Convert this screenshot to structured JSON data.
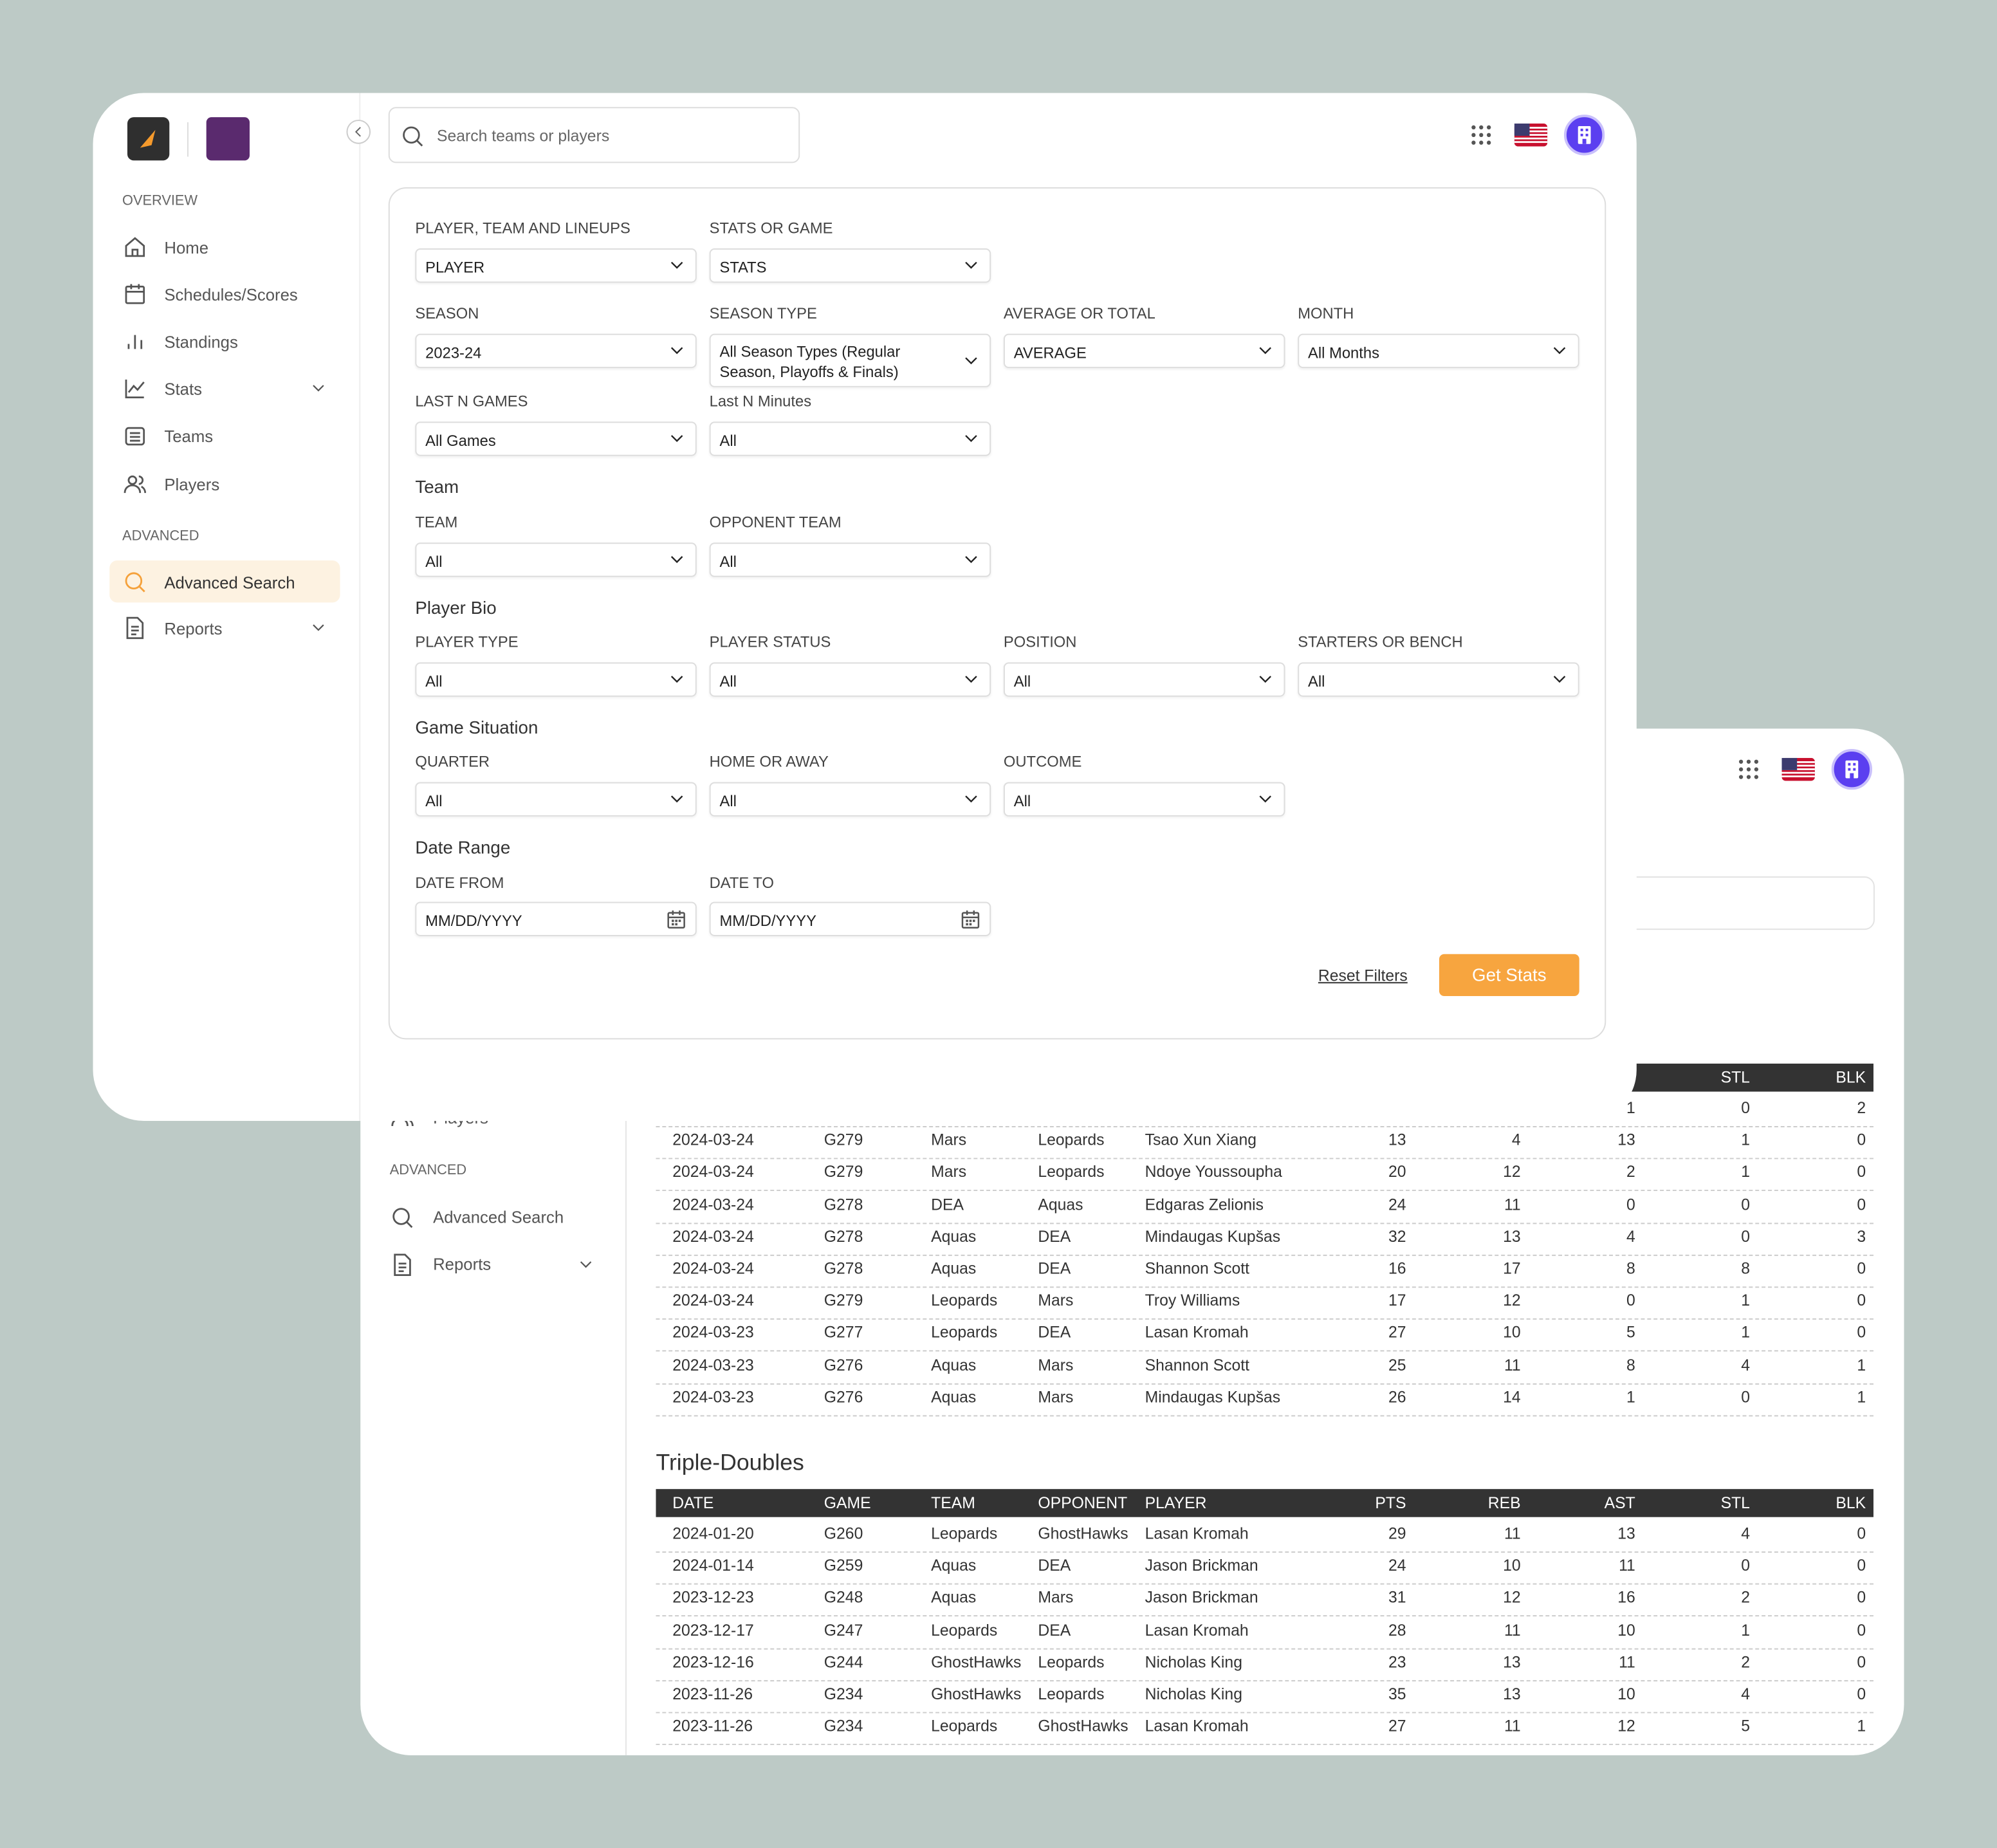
{
  "sidebar": {
    "overview_label": "OVERVIEW",
    "overview_items": [
      "Home",
      "Schedules/Scores",
      "Standings",
      "Stats",
      "Teams",
      "Players"
    ],
    "advanced_label": "ADVANCED",
    "advanced_items": [
      "Advanced Search",
      "Reports"
    ]
  },
  "search_placeholder": "Search teams or players",
  "filter_rows": [
    {
      "fields": [
        {
          "label": "PLAYER, TEAM AND LINEUPS",
          "value": "PLAYER"
        },
        {
          "label": "STATS OR GAME",
          "value": "STATS"
        }
      ]
    },
    {
      "fields": [
        {
          "label": "SEASON",
          "value": "2023-24"
        },
        {
          "label": "SEASON TYPE",
          "value": "All Season Types (Regular Season, Playoffs & Finals)"
        },
        {
          "label": "AVERAGE OR TOTAL",
          "value": "AVERAGE"
        },
        {
          "label": "MONTH",
          "value": "All Months"
        }
      ]
    },
    {
      "fields": [
        {
          "label": "LAST N GAMES",
          "value": "All Games"
        },
        {
          "label": "Last N Minutes",
          "value": "All"
        }
      ]
    },
    {
      "heading": "Team",
      "fields": [
        {
          "label": "TEAM",
          "value": "All"
        },
        {
          "label": "OPPONENT TEAM",
          "value": "All"
        }
      ]
    },
    {
      "heading": "Player Bio",
      "fields": [
        {
          "label": "PLAYER TYPE",
          "value": "All"
        },
        {
          "label": "PLAYER STATUS",
          "value": "All"
        },
        {
          "label": "POSITION",
          "value": "All"
        },
        {
          "label": "STARTERS OR BENCH",
          "value": "All"
        }
      ]
    },
    {
      "heading": "Game Situation",
      "fields": [
        {
          "label": "QUARTER",
          "value": "All"
        },
        {
          "label": "HOME OR AWAY",
          "value": "All"
        },
        {
          "label": "OUTCOME",
          "value": "All"
        }
      ]
    },
    {
      "heading": "Date Range",
      "date": true,
      "fields": [
        {
          "label": "DATE FROM",
          "value": "MM/DD/YYYY"
        },
        {
          "label": "DATE TO",
          "value": "MM/DD/YYYY"
        }
      ]
    }
  ],
  "reset_label": "Reset Filters",
  "submit_label": "Get Stats",
  "back_sidebar": {
    "partial_item": "Players",
    "advanced_label": "ADVANCED",
    "advanced_items": [
      "Advanced Search",
      "Reports"
    ]
  },
  "columns": [
    "DATE",
    "GAME",
    "TEAM",
    "OPPONENT",
    "PLAYER",
    "PTS",
    "REB",
    "AST",
    "STL",
    "BLK"
  ],
  "recent_rows": [
    [
      null,
      null,
      null,
      null,
      null,
      null,
      null,
      1,
      0,
      2
    ],
    [
      "2024-03-24",
      "G279",
      "Mars",
      "Leopards",
      "Tsao Xun Xiang",
      13,
      4,
      13,
      1,
      0
    ],
    [
      "2024-03-24",
      "G279",
      "Mars",
      "Leopards",
      "Ndoye Youssoupha",
      20,
      12,
      2,
      1,
      0
    ],
    [
      "2024-03-24",
      "G278",
      "DEA",
      "Aquas",
      "Edgaras Zelionis",
      24,
      11,
      0,
      0,
      0
    ],
    [
      "2024-03-24",
      "G278",
      "Aquas",
      "DEA",
      "Mindaugas Kupšas",
      32,
      13,
      4,
      0,
      3
    ],
    [
      "2024-03-24",
      "G278",
      "Aquas",
      "DEA",
      "Shannon Scott",
      16,
      17,
      8,
      8,
      0
    ],
    [
      "2024-03-24",
      "G279",
      "Leopards",
      "Mars",
      "Troy Williams",
      17,
      12,
      0,
      1,
      0
    ],
    [
      "2024-03-23",
      "G277",
      "Leopards",
      "DEA",
      "Lasan Kromah",
      27,
      10,
      5,
      1,
      0
    ],
    [
      "2024-03-23",
      "G276",
      "Aquas",
      "Mars",
      "Shannon Scott",
      25,
      11,
      8,
      4,
      1
    ],
    [
      "2024-03-23",
      "G276",
      "Aquas",
      "Mars",
      "Mindaugas Kupšas",
      26,
      14,
      1,
      0,
      1
    ]
  ],
  "triple_doubles": {
    "title": "Triple-Doubles",
    "rows": [
      [
        "2024-01-20",
        "G260",
        "Leopards",
        "GhostHawks",
        "Lasan Kromah",
        29,
        11,
        13,
        4,
        0
      ],
      [
        "2024-01-14",
        "G259",
        "Aquas",
        "DEA",
        "Jason Brickman",
        24,
        10,
        11,
        0,
        0
      ],
      [
        "2023-12-23",
        "G248",
        "Aquas",
        "Mars",
        "Jason Brickman",
        31,
        12,
        16,
        2,
        0
      ],
      [
        "2023-12-17",
        "G247",
        "Leopards",
        "DEA",
        "Lasan Kromah",
        28,
        11,
        10,
        1,
        0
      ],
      [
        "2023-12-16",
        "G244",
        "GhostHawks",
        "Leopards",
        "Nicholas King",
        23,
        13,
        11,
        2,
        0
      ],
      [
        "2023-11-26",
        "G234",
        "GhostHawks",
        "Leopards",
        "Nicholas King",
        35,
        13,
        10,
        4,
        0
      ],
      [
        "2023-11-26",
        "G234",
        "Leopards",
        "GhostHawks",
        "Lasan Kromah",
        27,
        11,
        12,
        5,
        1
      ]
    ]
  }
}
